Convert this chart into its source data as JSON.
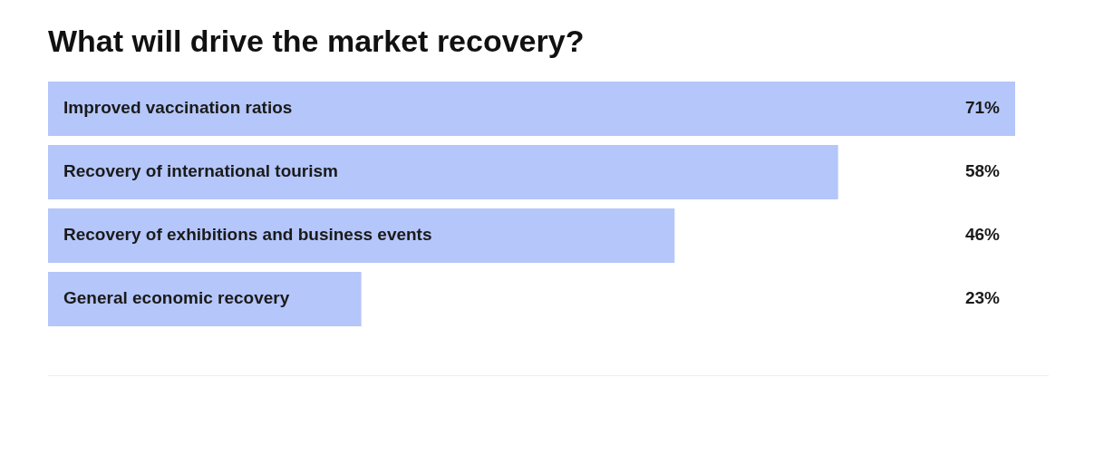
{
  "chart_data": {
    "type": "bar",
    "title": "What will drive the market recovery?",
    "orientation": "horizontal",
    "legend": false,
    "categories": [
      "Improved vaccination ratios",
      "Recovery of international tourism",
      "Recovery of exhibitions and business events",
      "General economic recovery"
    ],
    "values": [
      71,
      58,
      46,
      23
    ],
    "value_labels": [
      "71%",
      "58%",
      "46%",
      "23%"
    ],
    "color": "#b4c6fa"
  }
}
